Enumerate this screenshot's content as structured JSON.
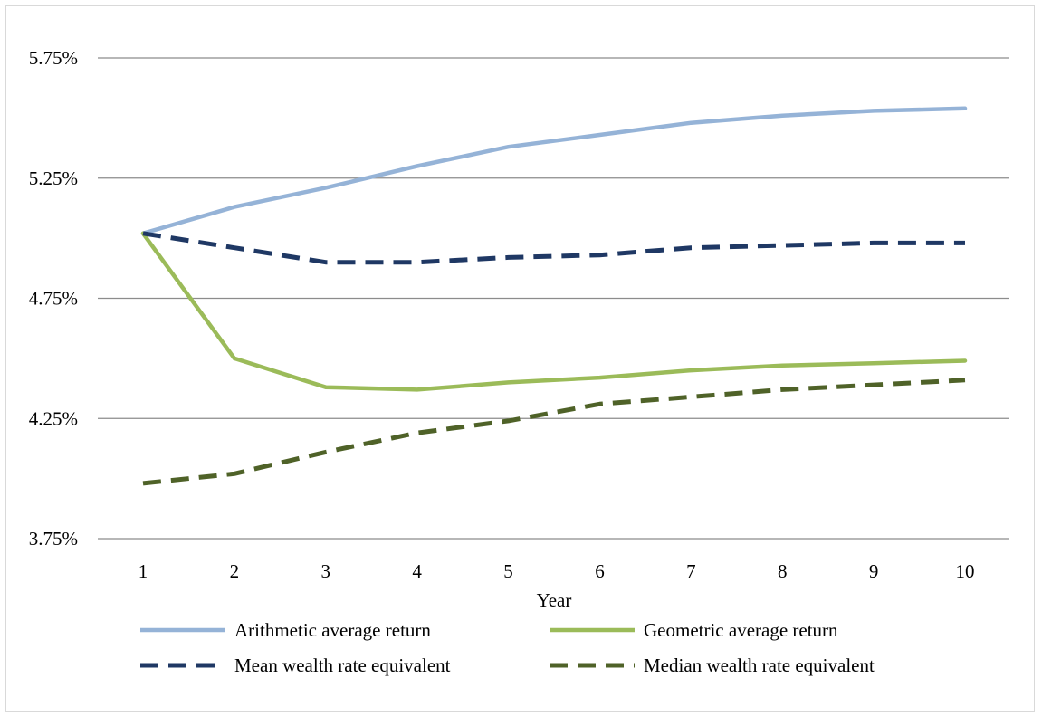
{
  "chart_data": {
    "type": "line",
    "title": "",
    "xlabel": "Year",
    "ylabel": "",
    "ylim": [
      3.75,
      5.75
    ],
    "yticks": [
      3.75,
      4.25,
      4.75,
      5.25,
      5.75
    ],
    "ytick_labels": [
      "3.75%",
      "4.25%",
      "4.75%",
      "5.25%",
      "5.75%"
    ],
    "grid": "horizontal",
    "legend_position": "bottom",
    "x": [
      1,
      2,
      3,
      4,
      5,
      6,
      7,
      8,
      9,
      10
    ],
    "x_labels": [
      "1",
      "2",
      "3",
      "4",
      "5",
      "6",
      "7",
      "8",
      "9",
      "10"
    ],
    "series": [
      {
        "name": "Arithmetic average return",
        "style": "solid",
        "color": "#95b3d7",
        "values": [
          5.02,
          5.13,
          5.21,
          5.3,
          5.38,
          5.43,
          5.48,
          5.51,
          5.53,
          5.54
        ]
      },
      {
        "name": "Geometric average return",
        "style": "solid",
        "color": "#9bbb59",
        "values": [
          5.02,
          4.5,
          4.38,
          4.37,
          4.4,
          4.42,
          4.45,
          4.47,
          4.48,
          4.49
        ]
      },
      {
        "name": "Mean wealth rate equivalent",
        "style": "dashed",
        "color": "#1f3864",
        "values": [
          5.02,
          4.96,
          4.9,
          4.9,
          4.92,
          4.93,
          4.96,
          4.97,
          4.98,
          4.98
        ]
      },
      {
        "name": "Median wealth rate equivalent",
        "style": "dashed",
        "color": "#4f6228",
        "values": [
          3.98,
          4.02,
          4.11,
          4.19,
          4.24,
          4.31,
          4.34,
          4.37,
          4.39,
          4.41
        ]
      }
    ]
  }
}
